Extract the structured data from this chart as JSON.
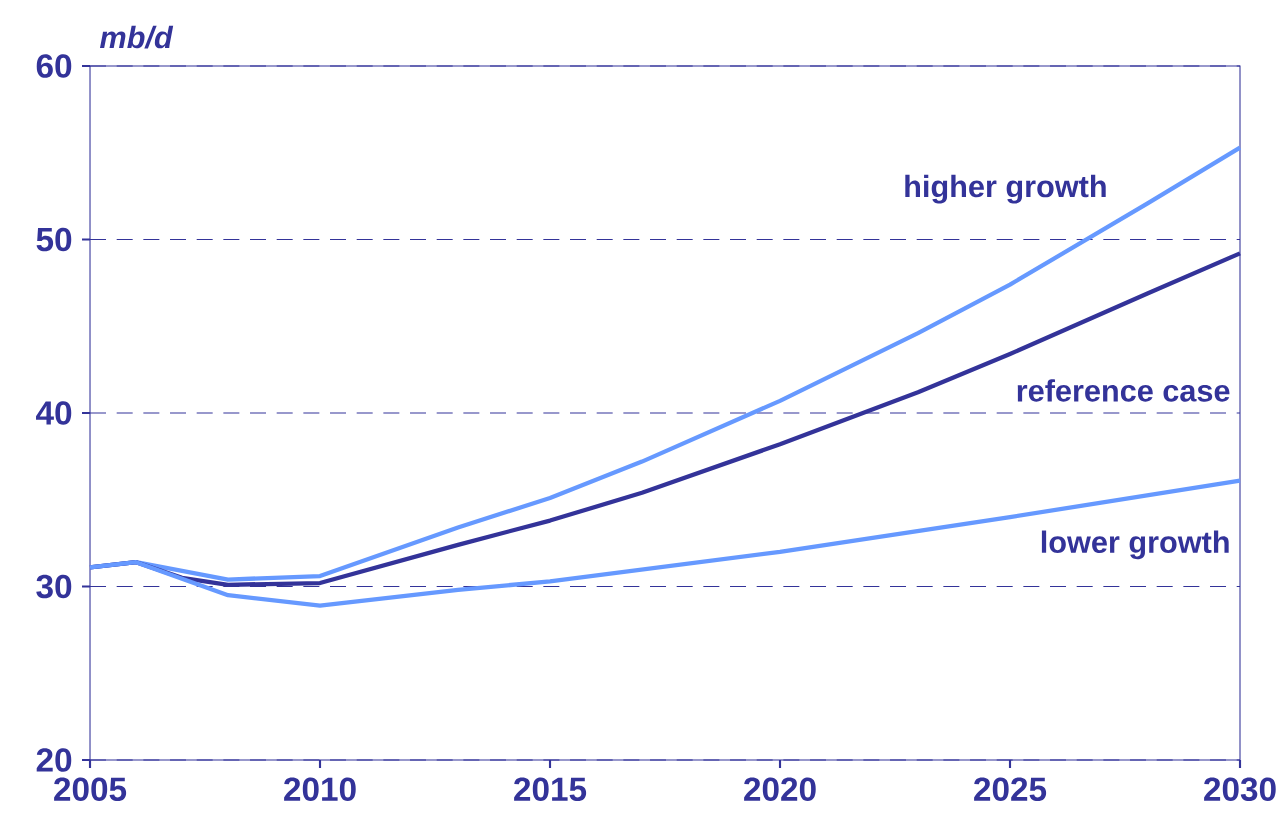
{
  "chart_data": {
    "type": "line",
    "ylabel": "mb/d",
    "xlim": [
      2005,
      2030
    ],
    "ylim": [
      20,
      60
    ],
    "xticks": [
      2005,
      2010,
      2015,
      2020,
      2025,
      2030
    ],
    "yticks": [
      20,
      30,
      40,
      50,
      60
    ],
    "grid": "y",
    "marker": "none",
    "line_style": "solid",
    "series": [
      {
        "name": "higher growth",
        "color": "#6699ff",
        "x": [
          2005,
          2006,
          2008,
          2010,
          2013,
          2015,
          2017,
          2020,
          2023,
          2025,
          2028,
          2030
        ],
        "values": [
          31.1,
          31.4,
          30.4,
          30.6,
          33.4,
          35.1,
          37.2,
          40.7,
          44.6,
          47.4,
          52.1,
          55.3
        ]
      },
      {
        "name": "reference case",
        "color": "#333399",
        "x": [
          2005,
          2006,
          2007,
          2008,
          2010,
          2013,
          2015,
          2017,
          2020,
          2023,
          2025,
          2028,
          2030
        ],
        "values": [
          31.1,
          31.4,
          30.5,
          30.1,
          30.2,
          32.4,
          33.8,
          35.4,
          38.2,
          41.2,
          43.4,
          46.9,
          49.2
        ]
      },
      {
        "name": "lower growth",
        "color": "#6699ff",
        "x": [
          2005,
          2006,
          2008,
          2010,
          2013,
          2015,
          2020,
          2025,
          2030
        ],
        "values": [
          31.1,
          31.4,
          29.5,
          28.9,
          29.8,
          30.3,
          32.0,
          34.0,
          36.1
        ]
      }
    ]
  }
}
